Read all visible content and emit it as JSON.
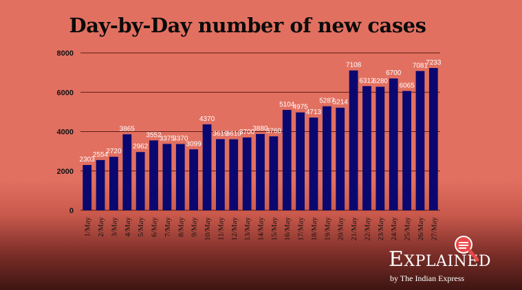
{
  "chart_data": {
    "type": "bar",
    "title": "Day-by-Day number of new cases",
    "xlabel": "",
    "ylabel": "",
    "ylim": [
      0,
      8000
    ],
    "yticks": [
      0,
      2000,
      4000,
      6000,
      8000
    ],
    "categories": [
      "1/May",
      "2/May",
      "3/May",
      "4/May",
      "5/May",
      "6/May",
      "7/May",
      "8/May",
      "9/May",
      "10/May",
      "11/May",
      "12/May",
      "13/May",
      "14/May",
      "15/May",
      "16/May",
      "17/May",
      "18/May",
      "19/May",
      "20/May",
      "21/May",
      "22/May",
      "23/May",
      "24/May",
      "25/May",
      "26/May",
      "27/May"
    ],
    "values": [
      2303,
      2554,
      2720,
      3865,
      2962,
      3552,
      3375,
      3370,
      3099,
      4370,
      3619,
      3610,
      3700,
      3880,
      3760,
      5104,
      4975,
      4713,
      5287,
      5214,
      7108,
      6312,
      6280,
      6700,
      6065,
      7081,
      7233
    ],
    "bar_color": "#0a0870",
    "grid_color": "#5a1a10"
  },
  "branding": {
    "word": "Explained",
    "word_lead": "E",
    "word_rest": "XPLAINED",
    "byline": "by The Indian Express"
  }
}
